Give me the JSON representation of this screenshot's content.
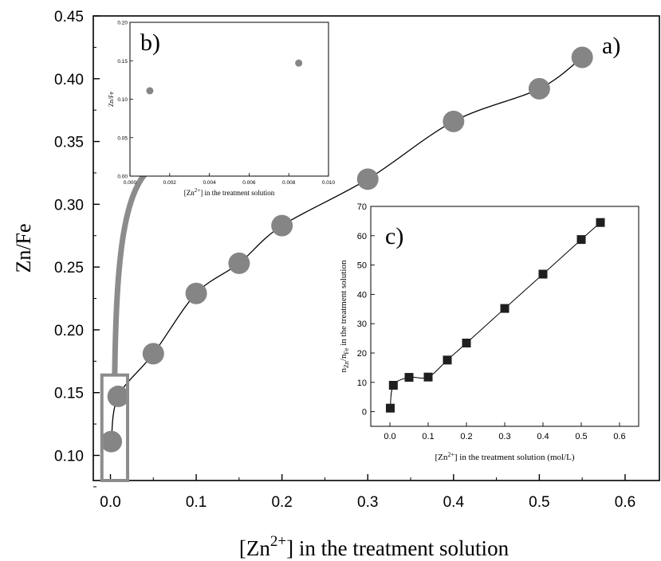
{
  "chart_data": [
    {
      "type": "scatter",
      "panel_label": "a)",
      "xlabel": "[Zn",
      "xlabel_sup": "2+",
      "xlabel_tail": "] in the treatment solution",
      "ylabel": "Zn/Fe",
      "xlim": [
        -0.02,
        0.64
      ],
      "ylim": [
        0.08,
        0.45
      ],
      "xticks": [
        "0.0",
        "0.1",
        "0.2",
        "0.3",
        "0.4",
        "0.5",
        "0.6"
      ],
      "yticks": [
        "0.10",
        "0.15",
        "0.20",
        "0.25",
        "0.30",
        "0.35",
        "0.40",
        "0.45"
      ],
      "line": "smooth curve through points",
      "marker": "filled circle",
      "marker_color": "#858585",
      "x": [
        0.001,
        0.009,
        0.05,
        0.1,
        0.15,
        0.2,
        0.3,
        0.4,
        0.5,
        0.55
      ],
      "y": [
        0.111,
        0.147,
        0.181,
        0.229,
        0.253,
        0.283,
        0.32,
        0.366,
        0.392,
        0.417
      ],
      "highlight_box": {
        "xrange": [
          -0.01,
          0.02
        ],
        "yrange": [
          0.08,
          0.164
        ],
        "color": "#8c8c8c"
      }
    },
    {
      "type": "scatter",
      "panel_label": "b)",
      "xlabel": "[Zn",
      "xlabel_sup": "2+",
      "xlabel_tail": "] in the treatment solution",
      "ylabel": "Zn/Fe",
      "xlim": [
        0,
        0.01
      ],
      "ylim": [
        0,
        0.2
      ],
      "xticks": [
        "0.000",
        "0.002",
        "0.004",
        "0.006",
        "0.008",
        "0.010"
      ],
      "yticks": [
        "0.00",
        "0.05",
        "0.10",
        "0.15",
        "0.20"
      ],
      "marker": "filled circle",
      "marker_color": "#858585",
      "x": [
        0.001,
        0.0085
      ],
      "y": [
        0.111,
        0.147
      ]
    },
    {
      "type": "line",
      "panel_label": "c)",
      "xlabel": "[Zn",
      "xlabel_sup": "2+",
      "xlabel_tail": "] in the treatment solution (mol/L)",
      "ylabel_parts": [
        "n",
        "Zn",
        "/n",
        "Fe",
        " in the treatment solution"
      ],
      "xlim": [
        -0.05,
        0.65
      ],
      "ylim": [
        -5,
        70
      ],
      "xticks": [
        "0.0",
        "0.1",
        "0.2",
        "0.3",
        "0.4",
        "0.5",
        "0.6"
      ],
      "yticks": [
        "0",
        "10",
        "20",
        "30",
        "40",
        "50",
        "60",
        "70"
      ],
      "marker": "filled square",
      "marker_color": "#1f1f1f",
      "x": [
        0.001,
        0.009,
        0.05,
        0.1,
        0.15,
        0.2,
        0.3,
        0.4,
        0.5,
        0.55
      ],
      "y": [
        1.2,
        9.0,
        11.7,
        11.8,
        17.6,
        23.4,
        35.2,
        46.9,
        58.7,
        64.5
      ]
    }
  ]
}
